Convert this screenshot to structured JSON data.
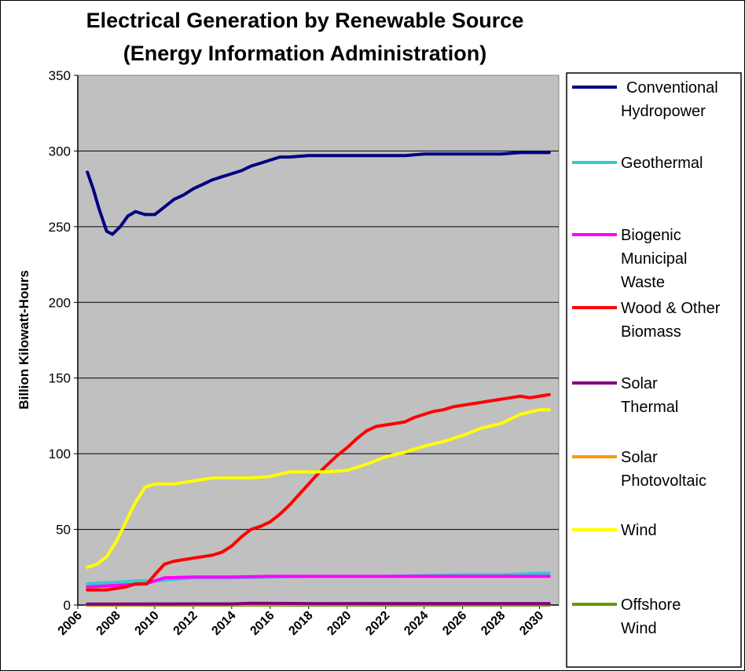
{
  "chart_data": {
    "type": "line",
    "title": [
      "Electrical Generation by Renewable Source",
      "(Energy Information Administration)"
    ],
    "xlabel": "",
    "ylabel": "Billion Kilowatt-Hours",
    "xlim": [
      2006,
      2031
    ],
    "ylim": [
      0,
      350
    ],
    "x_ticks": [
      "2006",
      "2008",
      "2010",
      "2012",
      "2014",
      "2016",
      "2018",
      "2020",
      "2022",
      "2024",
      "2026",
      "2028",
      "2030"
    ],
    "y_ticks": [
      "0",
      "50",
      "100",
      "150",
      "200",
      "250",
      "300",
      "350"
    ],
    "grid": "horizontal",
    "plot_background": "#c0c0c0",
    "legend_position": "right",
    "series": [
      {
        "name": "Conventional Hydropower",
        "legend_lines": [
          "Conventional",
          "Hydropower"
        ],
        "color": "#000080",
        "x": [
          2006.5,
          2006.8,
          2007.1,
          2007.5,
          2007.8,
          2008.2,
          2008.6,
          2009,
          2009.5,
          2010,
          2010.5,
          2011,
          2011.5,
          2012,
          2012.5,
          2013,
          2013.5,
          2014,
          2014.5,
          2015,
          2015.5,
          2016,
          2016.5,
          2017,
          2018,
          2019,
          2020,
          2021,
          2022,
          2023,
          2024,
          2025,
          2026,
          2027,
          2028,
          2029,
          2030,
          2030.5
        ],
        "values": [
          286,
          275,
          262,
          247,
          245,
          250,
          257,
          260,
          258,
          258,
          263,
          268,
          271,
          275,
          278,
          281,
          283,
          285,
          287,
          290,
          292,
          294,
          296,
          296,
          297,
          297,
          297,
          297,
          297,
          297,
          298,
          298,
          298,
          298,
          298,
          299,
          299,
          299
        ]
      },
      {
        "name": "Geothermal",
        "legend_lines": [
          "Geothermal"
        ],
        "color": "#33cccc",
        "x": [
          2006.5,
          2007,
          2008,
          2009,
          2010,
          2011,
          2012,
          2014,
          2016,
          2018,
          2020,
          2022,
          2024,
          2026,
          2028,
          2029,
          2030,
          2030.5
        ],
        "values": [
          14,
          14.5,
          15,
          16,
          16,
          17,
          18,
          18,
          18.5,
          19,
          19,
          19,
          19.5,
          20,
          20,
          20.5,
          21,
          21
        ]
      },
      {
        "name": "Biogenic Municipal Waste",
        "legend_lines": [
          "Biogenic",
          "Municipal",
          "Waste"
        ],
        "color": "#ff00ff",
        "x": [
          2006.5,
          2008,
          2009.5,
          2010.5,
          2012,
          2014,
          2016,
          2018,
          2020,
          2022,
          2024,
          2026,
          2028,
          2030,
          2030.5
        ],
        "values": [
          12,
          13,
          14,
          18,
          18.5,
          18.5,
          19,
          19,
          19,
          19,
          19,
          19,
          19,
          19,
          19
        ]
      },
      {
        "name": "Wood & Other Biomass",
        "legend_lines": [
          "Wood & Other",
          "Biomass"
        ],
        "color": "#ff0000",
        "x": [
          2006.5,
          2007,
          2007.5,
          2008,
          2008.5,
          2009,
          2009.6,
          2010,
          2010.5,
          2011,
          2011.5,
          2012,
          2012.5,
          2013,
          2013.5,
          2014,
          2014.5,
          2015,
          2015.5,
          2016,
          2016.5,
          2017,
          2017.5,
          2018,
          2018.5,
          2019,
          2019.5,
          2020,
          2020.5,
          2021,
          2021.5,
          2022,
          2022.5,
          2023,
          2023.5,
          2024,
          2024.5,
          2025,
          2025.5,
          2026,
          2026.5,
          2027,
          2027.5,
          2028,
          2028.5,
          2029,
          2029.5,
          2030,
          2030.5
        ],
        "values": [
          10,
          10,
          10,
          11,
          12,
          14,
          14,
          20,
          27,
          29,
          30,
          31,
          32,
          33,
          35,
          39,
          45,
          50,
          52,
          55,
          60,
          66,
          73,
          80,
          87,
          93,
          99,
          104,
          110,
          115,
          118,
          119,
          120,
          121,
          124,
          126,
          128,
          129,
          131,
          132,
          133,
          134,
          135,
          136,
          137,
          138,
          137,
          138,
          139
        ]
      },
      {
        "name": "Solar Thermal",
        "legend_lines": [
          "Solar",
          "Thermal"
        ],
        "color": "#800080",
        "x": [
          2006.5,
          2010,
          2014,
          2015,
          2018,
          2022,
          2026,
          2030.5
        ],
        "values": [
          0.6,
          0.7,
          0.8,
          1.2,
          1,
          1,
          1,
          1
        ]
      },
      {
        "name": "Solar Photovoltaic",
        "legend_lines": [
          "Solar",
          "Photovoltaic"
        ],
        "color": "#ff9900",
        "x": [
          2006.5,
          2010,
          2014,
          2018,
          2022,
          2026,
          2030.5
        ],
        "values": [
          0.2,
          0.3,
          0.4,
          0.5,
          0.6,
          0.7,
          0.8
        ]
      },
      {
        "name": "Wind",
        "legend_lines": [
          "Wind"
        ],
        "color": "#ffff00",
        "x": [
          2006.5,
          2007,
          2007.5,
          2008,
          2008.5,
          2009,
          2009.5,
          2010,
          2011,
          2012,
          2013,
          2014,
          2015,
          2016,
          2017,
          2018,
          2019,
          2020,
          2021,
          2022,
          2023,
          2024,
          2025,
          2026,
          2027,
          2028,
          2029,
          2030,
          2030.5
        ],
        "values": [
          25,
          27,
          32,
          42,
          55,
          68,
          78,
          80,
          80,
          82,
          84,
          84,
          84,
          85,
          88,
          88,
          88,
          89,
          93,
          98,
          101,
          105,
          108,
          112,
          117,
          120,
          126,
          129,
          129
        ]
      },
      {
        "name": "Offshore Wind",
        "legend_lines": [
          "Offshore",
          "Wind"
        ],
        "color": "#669900",
        "x": [
          2006.5,
          2010,
          2014,
          2018,
          2022,
          2026,
          2030.5
        ],
        "values": [
          0,
          0,
          0,
          0,
          0,
          0,
          0
        ]
      }
    ]
  }
}
